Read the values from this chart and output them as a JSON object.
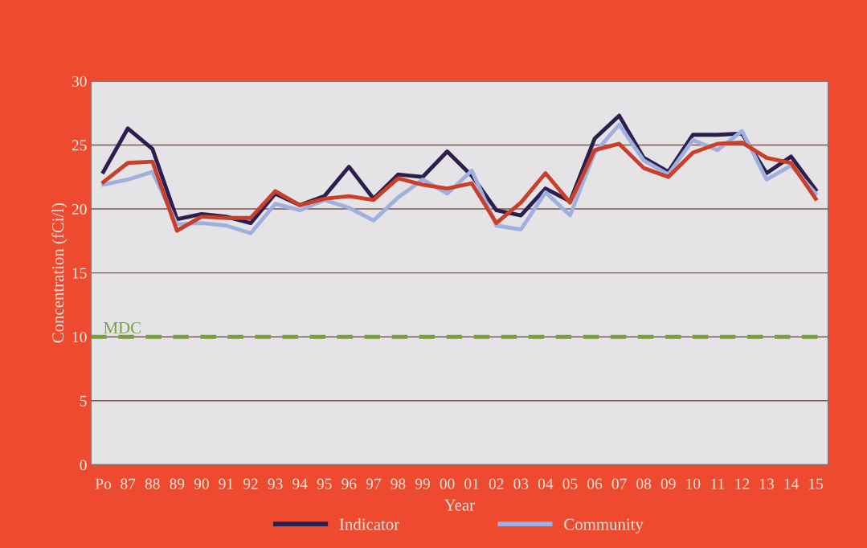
{
  "chart_data": {
    "type": "line",
    "ylabel": "Concentration (fCi/l)",
    "xlabel": "Year",
    "categories": [
      "Po",
      "87",
      "88",
      "89",
      "90",
      "91",
      "92",
      "93",
      "94",
      "95",
      "96",
      "97",
      "98",
      "99",
      "00",
      "01",
      "02",
      "03",
      "04",
      "05",
      "06",
      "07",
      "08",
      "09",
      "10",
      "11",
      "12",
      "13",
      "14",
      "15"
    ],
    "series": [
      {
        "name": "Indicator",
        "color": "#2a1f4e",
        "values": [
          22.9,
          26.3,
          24.7,
          19.2,
          19.6,
          19.4,
          18.9,
          21.2,
          20.3,
          21.0,
          23.3,
          20.8,
          22.7,
          22.5,
          24.5,
          22.6,
          19.9,
          19.5,
          21.6,
          20.6,
          25.5,
          27.3,
          24.0,
          22.9,
          25.8,
          25.8,
          25.9,
          22.8,
          24.1,
          21.5
        ]
      },
      {
        "name": "Community",
        "color": "#9fb0de",
        "values": [
          21.9,
          22.3,
          22.9,
          18.8,
          18.9,
          18.7,
          18.1,
          20.4,
          19.9,
          20.7,
          20.1,
          19.1,
          20.9,
          22.3,
          21.2,
          23.0,
          18.7,
          18.4,
          21.3,
          19.5,
          24.4,
          26.6,
          23.8,
          22.7,
          25.4,
          24.6,
          26.1,
          22.3,
          23.4,
          21.2
        ]
      },
      {
        "color": "#c8402a",
        "values": [
          22.1,
          23.6,
          23.7,
          18.3,
          19.4,
          19.3,
          19.3,
          21.4,
          20.3,
          20.8,
          21.0,
          20.7,
          22.4,
          21.9,
          21.6,
          22.0,
          18.9,
          20.5,
          22.8,
          20.5,
          24.6,
          25.1,
          23.2,
          22.5,
          24.4,
          25.1,
          25.2,
          24.0,
          23.6,
          20.8
        ]
      }
    ],
    "ylim": [
      0,
      30
    ],
    "yticks": [
      0,
      5,
      10,
      15,
      20,
      25,
      30
    ],
    "ref_lines": [
      {
        "axis": "y",
        "value": 10,
        "label": "MDC",
        "color": "#7aa03c",
        "line_style": "dashed"
      }
    ],
    "grid": "y",
    "legend": "bottom",
    "marker": "none",
    "line_style": "solid"
  }
}
